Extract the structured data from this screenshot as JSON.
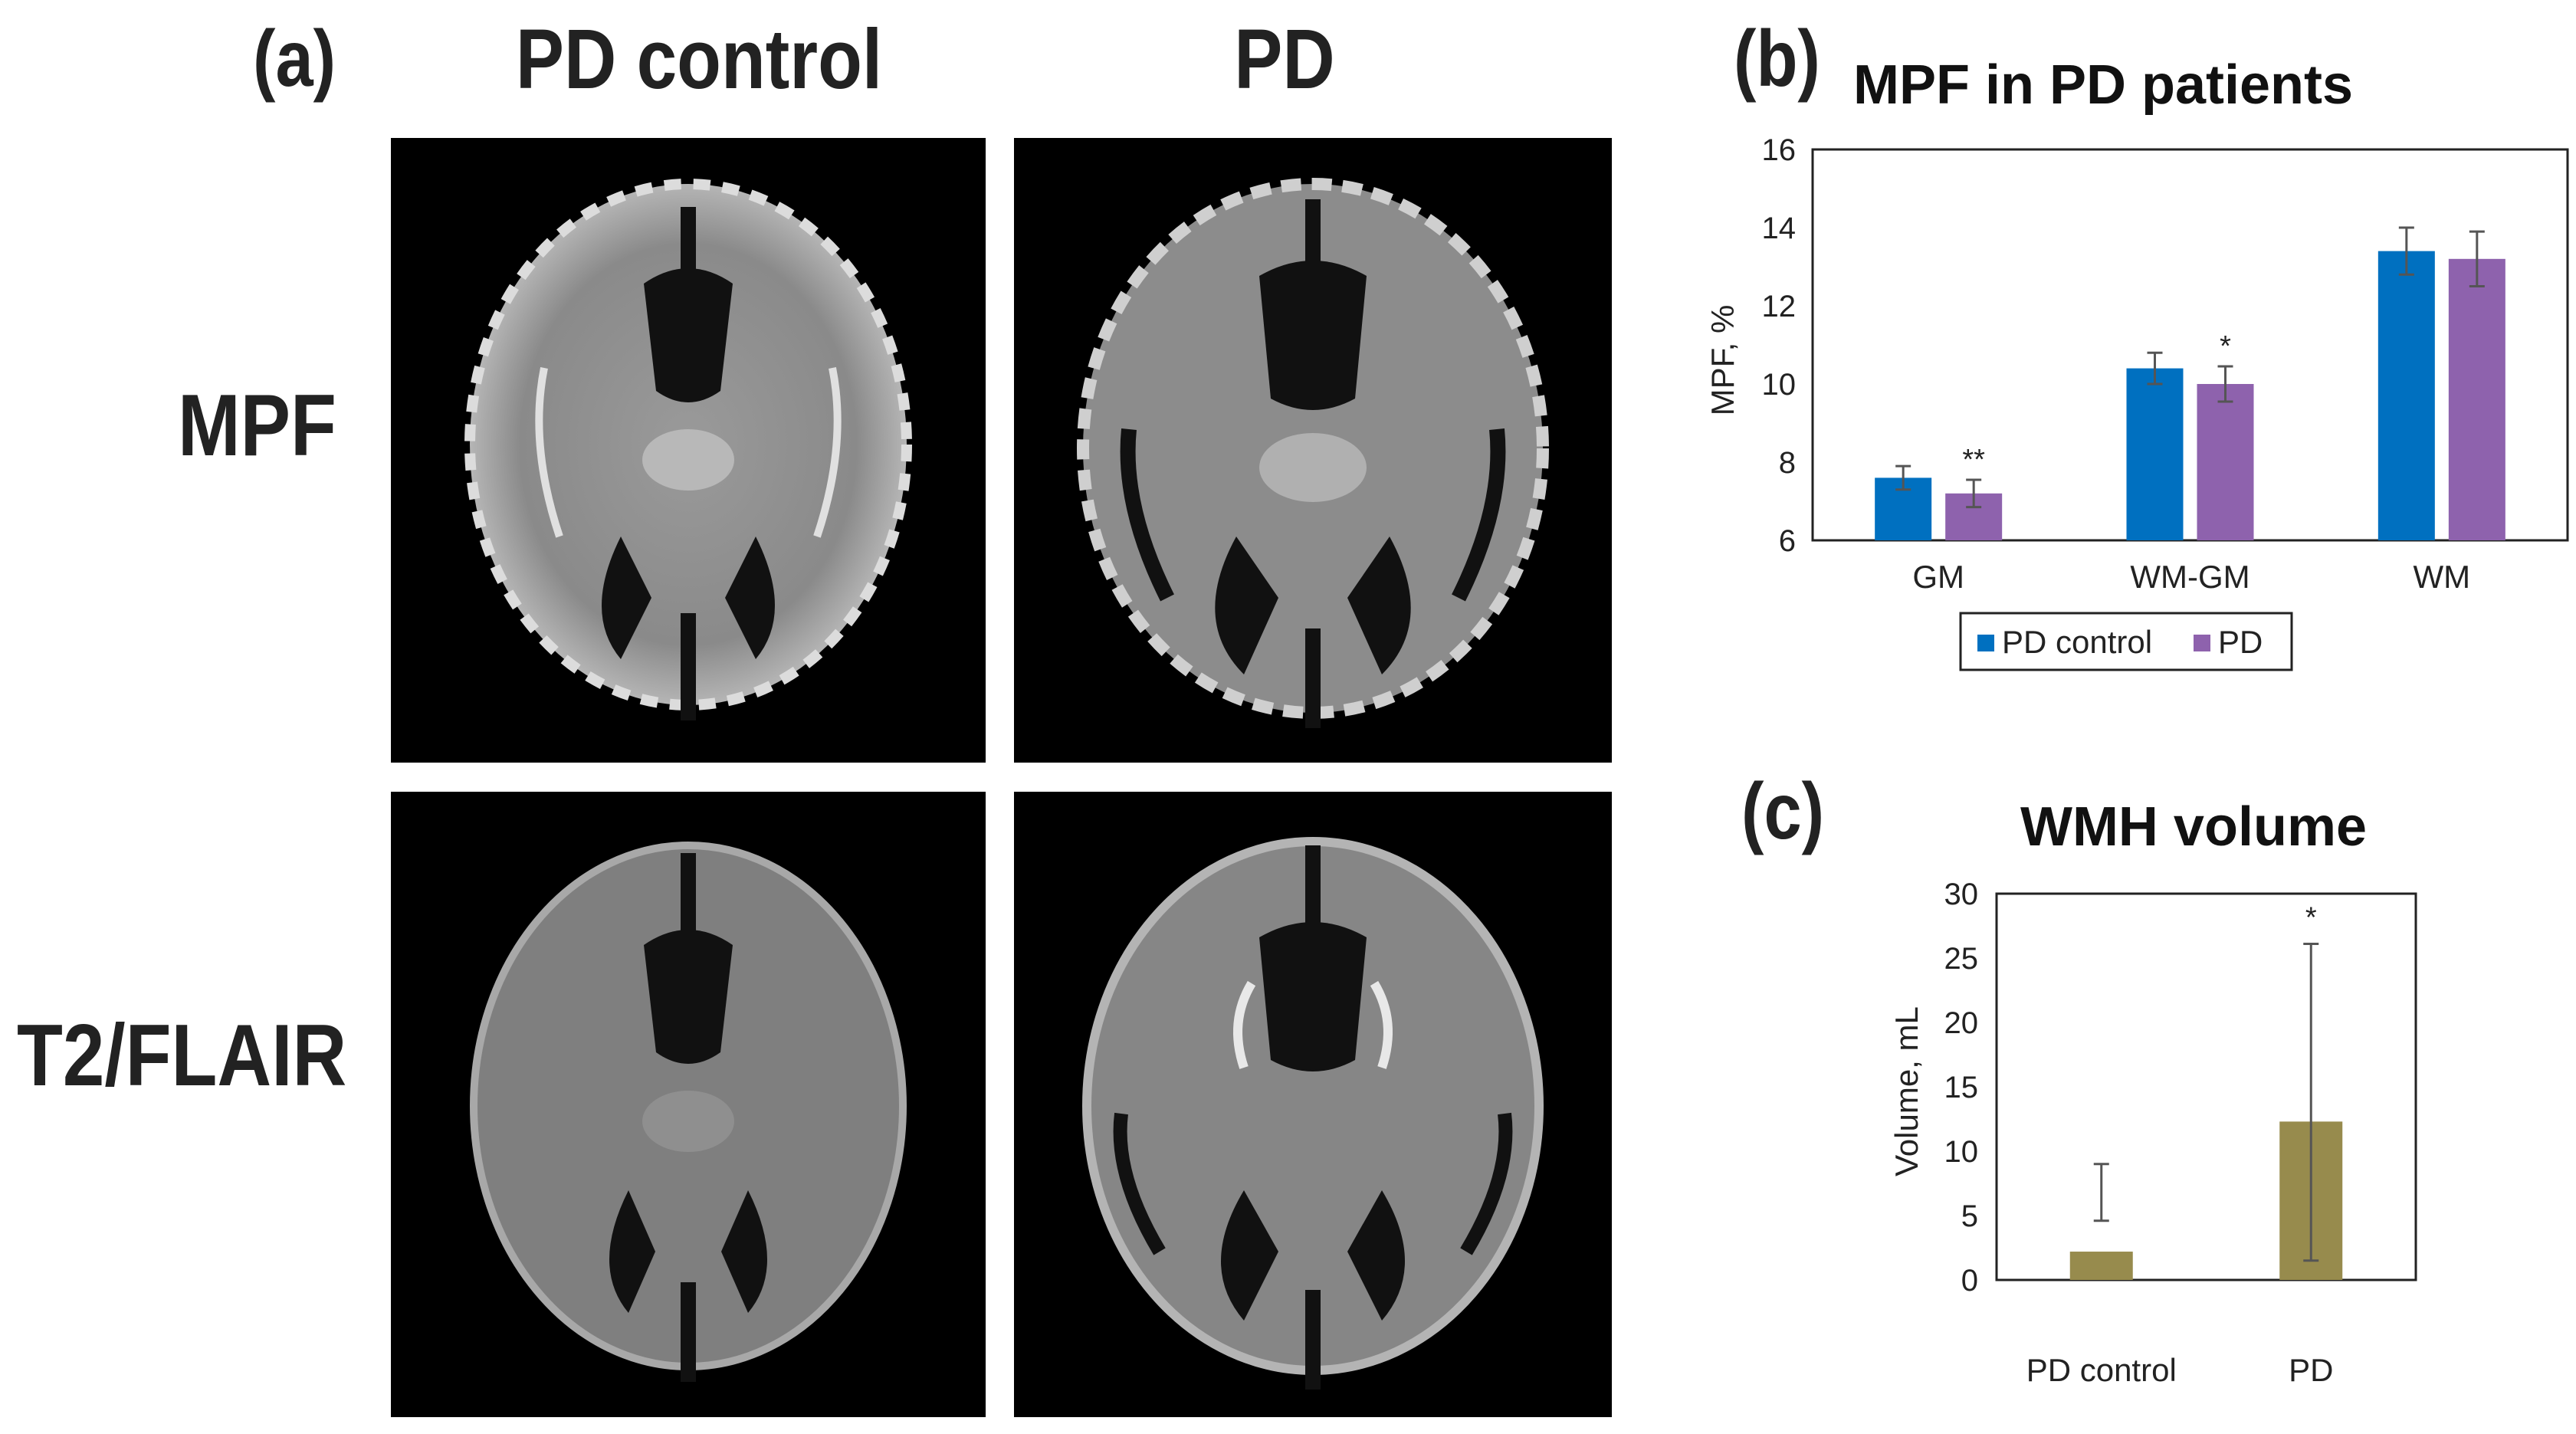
{
  "panel_a": {
    "letter": "(a)",
    "columns": [
      "PD control",
      "PD"
    ],
    "rows": [
      "MPF",
      "T2/FLAIR"
    ]
  },
  "panel_b": {
    "letter": "(b)"
  },
  "panel_c": {
    "letter": "(c)"
  },
  "colors": {
    "pd_control_blue": "#0070c0",
    "pd_purple": "#8e62ad",
    "wmh_olive": "#978b4d",
    "errorbar": "#555555"
  },
  "chart_data": [
    {
      "type": "bar",
      "title": "MPF in PD patients",
      "xlabel": "",
      "ylabel": "MPF, %",
      "ylim": [
        6,
        16
      ],
      "yticks": [
        6,
        8,
        10,
        12,
        14,
        16
      ],
      "categories": [
        "GM",
        "WM-GM",
        "WM"
      ],
      "series": [
        {
          "name": "PD control",
          "values": [
            7.6,
            10.4,
            13.4
          ],
          "errors": [
            0.3,
            0.4,
            0.6
          ]
        },
        {
          "name": "PD",
          "values": [
            7.2,
            10.0,
            13.2
          ],
          "errors": [
            0.35,
            0.45,
            0.7
          ]
        }
      ],
      "annotations": [
        "**",
        "*",
        ""
      ],
      "legend": "bottom",
      "grid": false
    },
    {
      "type": "bar",
      "title": "WMH volume",
      "xlabel": "",
      "ylabel": "Volume, mL",
      "ylim": [
        0,
        30
      ],
      "yticks": [
        0,
        5,
        10,
        15,
        20,
        25,
        30
      ],
      "categories": [
        "PD control",
        "PD"
      ],
      "values": [
        2.2,
        12.3
      ],
      "errors": [
        6.8,
        13.8
      ],
      "annotations": [
        "",
        "*"
      ],
      "legend": "none",
      "grid": false
    }
  ]
}
